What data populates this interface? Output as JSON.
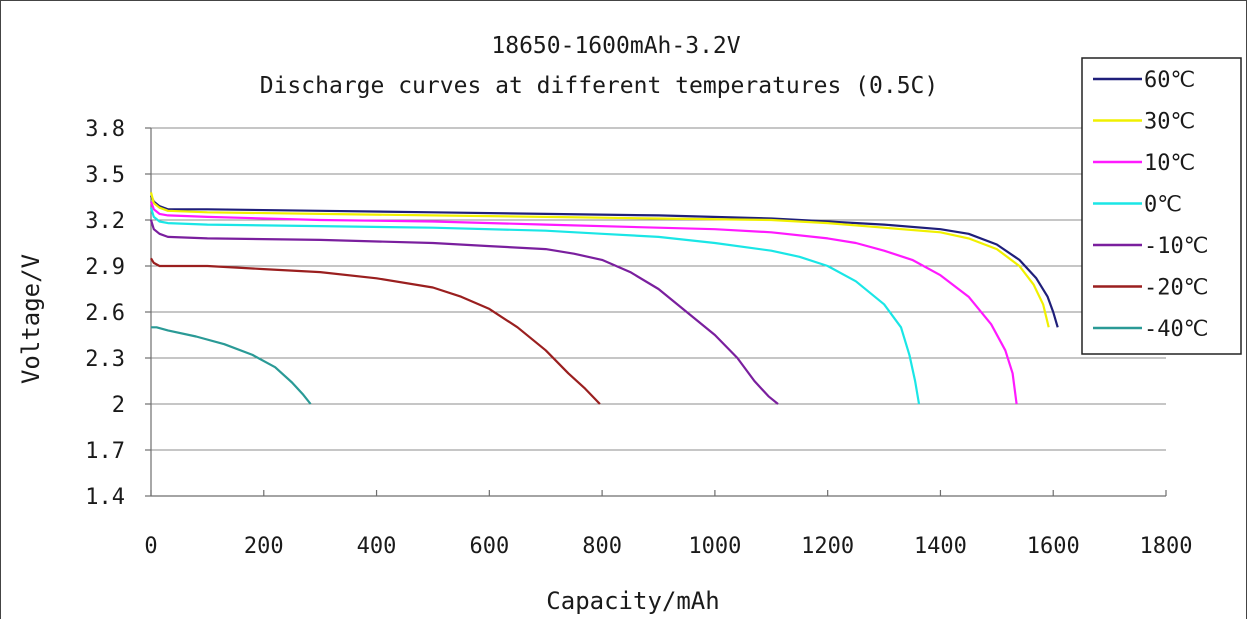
{
  "chart_data": {
    "type": "line",
    "title": "18650-1600mAh-3.2V",
    "subtitle": "Discharge curves at different temperatures (0.5C)",
    "xlabel": "Capacity/mAh",
    "ylabel": "Voltage/V",
    "xlim": [
      0,
      1800
    ],
    "ylim": [
      1.4,
      3.8
    ],
    "x_ticks": [
      0,
      200,
      400,
      600,
      800,
      1000,
      1200,
      1400,
      1600,
      1800
    ],
    "y_ticks": [
      3.8,
      3.5,
      3.2,
      2.9,
      2.6,
      2.3,
      2,
      1.7,
      1.4
    ],
    "y_tick_labels": [
      "3.8",
      "3.5",
      "3.2",
      "2.9",
      "2.6",
      "2.3",
      "2",
      "1.7",
      "1.4"
    ],
    "grid": "horizontal",
    "legend_position": "right",
    "series": [
      {
        "name": "60℃",
        "color": "#1f1f7a",
        "points": [
          [
            0,
            3.36
          ],
          [
            5,
            3.32
          ],
          [
            15,
            3.29
          ],
          [
            30,
            3.27
          ],
          [
            100,
            3.27
          ],
          [
            300,
            3.26
          ],
          [
            500,
            3.25
          ],
          [
            700,
            3.24
          ],
          [
            900,
            3.23
          ],
          [
            1100,
            3.21
          ],
          [
            1200,
            3.19
          ],
          [
            1300,
            3.17
          ],
          [
            1400,
            3.14
          ],
          [
            1450,
            3.11
          ],
          [
            1500,
            3.04
          ],
          [
            1540,
            2.94
          ],
          [
            1570,
            2.82
          ],
          [
            1590,
            2.7
          ],
          [
            1600,
            2.6
          ],
          [
            1608,
            2.5
          ]
        ]
      },
      {
        "name": "30℃",
        "color": "#f0f000",
        "points": [
          [
            0,
            3.38
          ],
          [
            5,
            3.31
          ],
          [
            15,
            3.28
          ],
          [
            30,
            3.26
          ],
          [
            100,
            3.25
          ],
          [
            300,
            3.24
          ],
          [
            500,
            3.23
          ],
          [
            700,
            3.22
          ],
          [
            900,
            3.21
          ],
          [
            1100,
            3.2
          ],
          [
            1200,
            3.18
          ],
          [
            1300,
            3.15
          ],
          [
            1400,
            3.12
          ],
          [
            1450,
            3.08
          ],
          [
            1500,
            3.01
          ],
          [
            1540,
            2.9
          ],
          [
            1565,
            2.78
          ],
          [
            1582,
            2.65
          ],
          [
            1592,
            2.5
          ]
        ]
      },
      {
        "name": "10℃",
        "color": "#ff1aff",
        "points": [
          [
            0,
            3.32
          ],
          [
            5,
            3.27
          ],
          [
            15,
            3.24
          ],
          [
            30,
            3.23
          ],
          [
            100,
            3.22
          ],
          [
            300,
            3.2
          ],
          [
            500,
            3.19
          ],
          [
            700,
            3.17
          ],
          [
            900,
            3.15
          ],
          [
            1000,
            3.14
          ],
          [
            1100,
            3.12
          ],
          [
            1200,
            3.08
          ],
          [
            1250,
            3.05
          ],
          [
            1300,
            3.0
          ],
          [
            1350,
            2.94
          ],
          [
            1400,
            2.84
          ],
          [
            1450,
            2.7
          ],
          [
            1490,
            2.52
          ],
          [
            1515,
            2.35
          ],
          [
            1528,
            2.2
          ],
          [
            1535,
            2.0
          ]
        ]
      },
      {
        "name": "0℃",
        "color": "#1ae6e6",
        "points": [
          [
            0,
            3.28
          ],
          [
            5,
            3.22
          ],
          [
            15,
            3.19
          ],
          [
            30,
            3.18
          ],
          [
            100,
            3.17
          ],
          [
            300,
            3.16
          ],
          [
            500,
            3.15
          ],
          [
            700,
            3.13
          ],
          [
            800,
            3.11
          ],
          [
            900,
            3.09
          ],
          [
            1000,
            3.05
          ],
          [
            1100,
            3.0
          ],
          [
            1150,
            2.96
          ],
          [
            1200,
            2.9
          ],
          [
            1250,
            2.8
          ],
          [
            1300,
            2.65
          ],
          [
            1330,
            2.5
          ],
          [
            1345,
            2.32
          ],
          [
            1355,
            2.15
          ],
          [
            1362,
            2.0
          ]
        ]
      },
      {
        "name": "-10℃",
        "color": "#7a1f9e",
        "points": [
          [
            0,
            3.2
          ],
          [
            5,
            3.14
          ],
          [
            15,
            3.11
          ],
          [
            30,
            3.09
          ],
          [
            100,
            3.08
          ],
          [
            300,
            3.07
          ],
          [
            500,
            3.05
          ],
          [
            600,
            3.03
          ],
          [
            700,
            3.01
          ],
          [
            750,
            2.98
          ],
          [
            800,
            2.94
          ],
          [
            850,
            2.86
          ],
          [
            900,
            2.75
          ],
          [
            950,
            2.6
          ],
          [
            1000,
            2.45
          ],
          [
            1040,
            2.3
          ],
          [
            1070,
            2.15
          ],
          [
            1095,
            2.05
          ],
          [
            1112,
            2.0
          ]
        ]
      },
      {
        "name": "-20℃",
        "color": "#9a1f1f",
        "points": [
          [
            0,
            2.95
          ],
          [
            5,
            2.92
          ],
          [
            15,
            2.9
          ],
          [
            100,
            2.9
          ],
          [
            200,
            2.88
          ],
          [
            300,
            2.86
          ],
          [
            400,
            2.82
          ],
          [
            500,
            2.76
          ],
          [
            550,
            2.7
          ],
          [
            600,
            2.62
          ],
          [
            650,
            2.5
          ],
          [
            700,
            2.35
          ],
          [
            740,
            2.2
          ],
          [
            770,
            2.1
          ],
          [
            796,
            2.0
          ]
        ]
      },
      {
        "name": "-40℃",
        "color": "#2a9a96",
        "points": [
          [
            0,
            2.5
          ],
          [
            10,
            2.5
          ],
          [
            30,
            2.48
          ],
          [
            80,
            2.44
          ],
          [
            130,
            2.39
          ],
          [
            180,
            2.32
          ],
          [
            220,
            2.24
          ],
          [
            250,
            2.14
          ],
          [
            270,
            2.06
          ],
          [
            283,
            2.0
          ]
        ]
      }
    ]
  }
}
